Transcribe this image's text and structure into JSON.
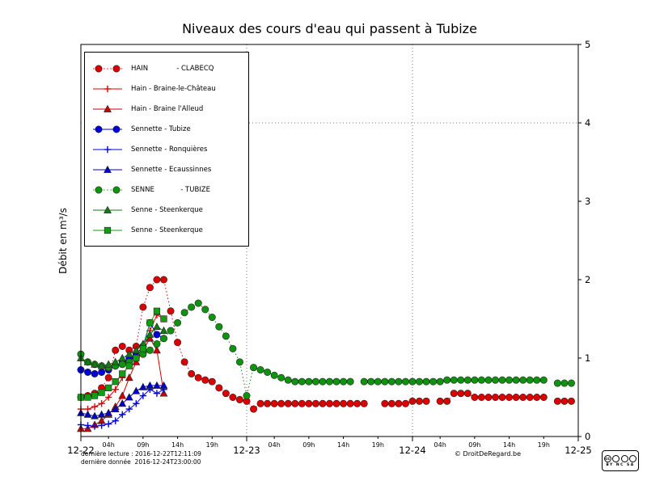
{
  "title": "Niveaux des cours d'eau qui passent à Tubize",
  "ylabel": "Débit en m³/s",
  "footer": {
    "last_read": "dernière lecture : 2016-12-22T12:11:09",
    "last_data": "dernière donnée  2016-12-24T23:00:00",
    "copyright": "© DroitDeRegard.be",
    "cc_logo": "cc",
    "license_letters": "BY NC SA"
  },
  "chart_data": {
    "type": "line",
    "title": "Niveaux des cours d'eau qui passent à Tubize",
    "xlabel": "",
    "ylabel": "Débit en m³/s",
    "ylim": [
      0,
      5
    ],
    "xlim_hours": [
      0,
      72
    ],
    "grid": {
      "vertical_hours": [
        24,
        48
      ],
      "horizontal_values": [
        4
      ]
    },
    "y_ticks": [
      0,
      1,
      2,
      3,
      4,
      5
    ],
    "x_major_ticks": [
      {
        "hour": 0,
        "label": "12-22"
      },
      {
        "hour": 24,
        "label": "12-23"
      },
      {
        "hour": 48,
        "label": "12-24"
      },
      {
        "hour": 72,
        "label": "12-25"
      }
    ],
    "x_minor_ticks": [
      {
        "hour": 4,
        "label": "04h"
      },
      {
        "hour": 9,
        "label": "09h"
      },
      {
        "hour": 14,
        "label": "14h"
      },
      {
        "hour": 19,
        "label": "19h"
      },
      {
        "hour": 28,
        "label": "04h"
      },
      {
        "hour": 33,
        "label": "09h"
      },
      {
        "hour": 38,
        "label": "14h"
      },
      {
        "hour": 43,
        "label": "19h"
      },
      {
        "hour": 52,
        "label": "04h"
      },
      {
        "hour": 57,
        "label": "09h"
      },
      {
        "hour": 62,
        "label": "14h"
      },
      {
        "hour": 67,
        "label": "19h"
      }
    ],
    "legend_position": "upper-left",
    "series": [
      {
        "name": "HAIN             - CLABECQ",
        "color": "#dd0000",
        "marker": "circle",
        "line": "dotted",
        "points": [
          [
            0,
            0.5
          ],
          [
            1,
            0.52
          ],
          [
            2,
            0.55
          ],
          [
            3,
            0.62
          ],
          [
            4,
            0.75
          ],
          [
            5,
            1.1
          ],
          [
            6,
            1.15
          ],
          [
            7,
            1.1
          ],
          [
            8,
            1.15
          ],
          [
            9,
            1.65
          ],
          [
            10,
            1.9
          ],
          [
            11,
            2.0
          ],
          [
            12,
            2.0
          ],
          [
            13,
            1.6
          ],
          [
            14,
            1.2
          ],
          [
            15,
            0.95
          ],
          [
            16,
            0.8
          ],
          [
            17,
            0.75
          ],
          [
            18,
            0.72
          ],
          [
            19,
            0.7
          ],
          [
            20,
            0.62
          ],
          [
            21,
            0.55
          ],
          [
            22,
            0.5
          ],
          [
            23,
            0.47
          ],
          [
            24,
            0.45
          ],
          [
            25,
            0.35
          ],
          [
            26,
            0.42
          ],
          [
            27,
            0.42
          ],
          [
            28,
            0.42
          ],
          [
            29,
            0.42
          ],
          [
            30,
            0.42
          ],
          [
            31,
            0.42
          ],
          [
            32,
            0.42
          ],
          [
            33,
            0.42
          ],
          [
            34,
            0.42
          ],
          [
            35,
            0.42
          ],
          [
            36,
            0.42
          ],
          [
            37,
            0.42
          ],
          [
            38,
            0.42
          ],
          [
            39,
            0.42
          ],
          [
            40,
            0.42
          ],
          [
            41,
            0.42
          ],
          [
            44,
            0.42
          ],
          [
            45,
            0.42
          ],
          [
            46,
            0.42
          ],
          [
            47,
            0.42
          ],
          [
            48,
            0.45
          ],
          [
            49,
            0.45
          ],
          [
            50,
            0.45
          ],
          [
            52,
            0.45
          ],
          [
            53,
            0.45
          ],
          [
            54,
            0.55
          ],
          [
            55,
            0.55
          ],
          [
            56,
            0.55
          ],
          [
            57,
            0.5
          ],
          [
            58,
            0.5
          ],
          [
            59,
            0.5
          ],
          [
            60,
            0.5
          ],
          [
            61,
            0.5
          ],
          [
            62,
            0.5
          ],
          [
            63,
            0.5
          ],
          [
            64,
            0.5
          ],
          [
            65,
            0.5
          ],
          [
            66,
            0.5
          ],
          [
            67,
            0.5
          ],
          [
            69,
            0.45
          ],
          [
            70,
            0.45
          ],
          [
            71,
            0.45
          ]
        ]
      },
      {
        "name": "Hain - Braine-le-Château",
        "color": "#dd0000",
        "marker": "plus",
        "line": "solid",
        "points": [
          [
            0,
            0.35
          ],
          [
            1,
            0.35
          ],
          [
            2,
            0.38
          ],
          [
            3,
            0.42
          ],
          [
            4,
            0.5
          ],
          [
            5,
            0.6
          ],
          [
            6,
            0.75
          ],
          [
            7,
            0.95
          ],
          [
            8,
            1.05
          ],
          [
            9,
            1.1
          ],
          [
            10,
            1.35
          ],
          [
            11,
            1.55
          ],
          [
            12,
            1.5
          ]
        ]
      },
      {
        "name": "Hain - Braine l'Alleud",
        "color": "#cc0000",
        "marker": "triangle",
        "line": "solid",
        "points": [
          [
            0,
            0.1
          ],
          [
            1,
            0.1
          ],
          [
            2,
            0.15
          ],
          [
            3,
            0.2
          ],
          [
            4,
            0.28
          ],
          [
            5,
            0.38
          ],
          [
            6,
            0.52
          ],
          [
            7,
            0.75
          ],
          [
            8,
            0.95
          ],
          [
            9,
            1.1
          ],
          [
            10,
            1.25
          ],
          [
            11,
            1.1
          ],
          [
            12,
            0.55
          ]
        ]
      },
      {
        "name": "Sennette - Tubize",
        "color": "#0000dd",
        "marker": "circle",
        "line": "solid",
        "points": [
          [
            0,
            0.85
          ],
          [
            1,
            0.82
          ],
          [
            2,
            0.8
          ],
          [
            3,
            0.82
          ],
          [
            4,
            0.85
          ],
          [
            5,
            0.9
          ],
          [
            6,
            0.95
          ],
          [
            7,
            1.0
          ],
          [
            8,
            1.05
          ],
          [
            9,
            1.15
          ],
          [
            10,
            1.45
          ],
          [
            11,
            1.3
          ],
          [
            12,
            1.25
          ]
        ]
      },
      {
        "name": "Sennette - Ronquières",
        "color": "#0000dd",
        "marker": "plus",
        "line": "solid",
        "points": [
          [
            0,
            0.15
          ],
          [
            1,
            0.14
          ],
          [
            2,
            0.13
          ],
          [
            3,
            0.14
          ],
          [
            4,
            0.16
          ],
          [
            5,
            0.2
          ],
          [
            6,
            0.28
          ],
          [
            7,
            0.35
          ],
          [
            8,
            0.42
          ],
          [
            9,
            0.52
          ],
          [
            10,
            0.6
          ],
          [
            11,
            0.55
          ],
          [
            12,
            0.6
          ]
        ]
      },
      {
        "name": "Sennette - Ecaussinnes",
        "color": "#0000cc",
        "marker": "triangle",
        "line": "solid",
        "points": [
          [
            0,
            0.3
          ],
          [
            1,
            0.28
          ],
          [
            2,
            0.26
          ],
          [
            3,
            0.28
          ],
          [
            4,
            0.3
          ],
          [
            5,
            0.35
          ],
          [
            6,
            0.42
          ],
          [
            7,
            0.5
          ],
          [
            8,
            0.58
          ],
          [
            9,
            0.63
          ],
          [
            10,
            0.65
          ],
          [
            11,
            0.65
          ],
          [
            12,
            0.65
          ]
        ]
      },
      {
        "name": "SENNE            - TUBIZE",
        "color": "#0e930e",
        "marker": "circle",
        "line": "dotted",
        "points": [
          [
            0,
            1.05
          ],
          [
            1,
            0.95
          ],
          [
            2,
            0.92
          ],
          [
            3,
            0.9
          ],
          [
            4,
            0.88
          ],
          [
            5,
            0.9
          ],
          [
            6,
            0.92
          ],
          [
            7,
            0.95
          ],
          [
            8,
            1.0
          ],
          [
            9,
            1.05
          ],
          [
            10,
            1.1
          ],
          [
            11,
            1.18
          ],
          [
            12,
            1.25
          ],
          [
            13,
            1.35
          ],
          [
            14,
            1.45
          ],
          [
            15,
            1.58
          ],
          [
            16,
            1.65
          ],
          [
            17,
            1.7
          ],
          [
            18,
            1.62
          ],
          [
            19,
            1.52
          ],
          [
            20,
            1.4
          ],
          [
            21,
            1.28
          ],
          [
            22,
            1.12
          ],
          [
            23,
            0.95
          ],
          [
            24,
            0.52
          ],
          [
            25,
            0.88
          ],
          [
            26,
            0.85
          ],
          [
            27,
            0.82
          ],
          [
            28,
            0.78
          ],
          [
            29,
            0.75
          ],
          [
            30,
            0.72
          ],
          [
            31,
            0.7
          ],
          [
            32,
            0.7
          ],
          [
            33,
            0.7
          ],
          [
            34,
            0.7
          ],
          [
            35,
            0.7
          ],
          [
            36,
            0.7
          ],
          [
            37,
            0.7
          ],
          [
            38,
            0.7
          ],
          [
            39,
            0.7
          ],
          [
            41,
            0.7
          ],
          [
            42,
            0.7
          ],
          [
            43,
            0.7
          ],
          [
            44,
            0.7
          ],
          [
            45,
            0.7
          ],
          [
            46,
            0.7
          ],
          [
            47,
            0.7
          ],
          [
            48,
            0.7
          ],
          [
            49,
            0.7
          ],
          [
            50,
            0.7
          ],
          [
            51,
            0.7
          ],
          [
            52,
            0.7
          ],
          [
            53,
            0.72
          ],
          [
            54,
            0.72
          ],
          [
            55,
            0.72
          ],
          [
            56,
            0.72
          ],
          [
            57,
            0.72
          ],
          [
            58,
            0.72
          ],
          [
            59,
            0.72
          ],
          [
            60,
            0.72
          ],
          [
            61,
            0.72
          ],
          [
            62,
            0.72
          ],
          [
            63,
            0.72
          ],
          [
            64,
            0.72
          ],
          [
            65,
            0.72
          ],
          [
            66,
            0.72
          ],
          [
            67,
            0.72
          ],
          [
            69,
            0.68
          ],
          [
            70,
            0.68
          ],
          [
            71,
            0.68
          ]
        ]
      },
      {
        "name": "Senne - Steenkerque",
        "color": "#147814",
        "marker": "triangle",
        "line": "solid",
        "points": [
          [
            0,
            1.0
          ],
          [
            1,
            0.95
          ],
          [
            2,
            0.92
          ],
          [
            3,
            0.9
          ],
          [
            4,
            0.92
          ],
          [
            5,
            0.95
          ],
          [
            6,
            1.0
          ],
          [
            7,
            1.05
          ],
          [
            8,
            1.1
          ],
          [
            9,
            1.18
          ],
          [
            10,
            1.3
          ],
          [
            11,
            1.4
          ],
          [
            12,
            1.35
          ]
        ]
      },
      {
        "name": "Senne - Steenkerque",
        "color": "#0fa00f",
        "marker": "square",
        "line": "solid",
        "points": [
          [
            0,
            0.5
          ],
          [
            1,
            0.5
          ],
          [
            2,
            0.52
          ],
          [
            3,
            0.56
          ],
          [
            4,
            0.62
          ],
          [
            5,
            0.7
          ],
          [
            6,
            0.8
          ],
          [
            7,
            0.9
          ],
          [
            8,
            1.0
          ],
          [
            9,
            1.12
          ],
          [
            10,
            1.45
          ],
          [
            11,
            1.6
          ],
          [
            12,
            1.5
          ]
        ]
      }
    ]
  }
}
